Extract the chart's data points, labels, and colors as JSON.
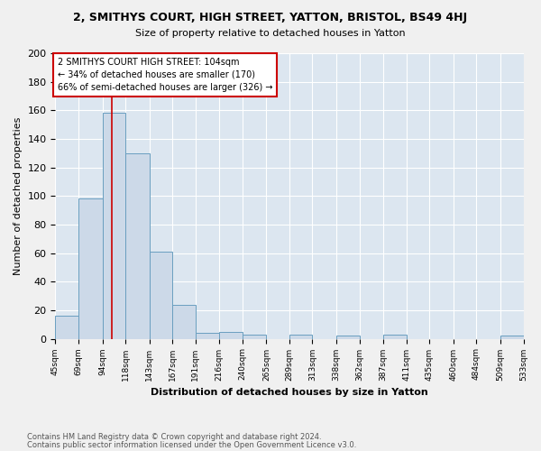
{
  "title": "2, SMITHYS COURT, HIGH STREET, YATTON, BRISTOL, BS49 4HJ",
  "subtitle": "Size of property relative to detached houses in Yatton",
  "xlabel": "Distribution of detached houses by size in Yatton",
  "ylabel": "Number of detached properties",
  "bar_edges": [
    45,
    69,
    94,
    118,
    143,
    167,
    191,
    216,
    240,
    265,
    289,
    313,
    338,
    362,
    387,
    411,
    435,
    460,
    484,
    509,
    533
  ],
  "bar_heights": [
    16,
    98,
    158,
    130,
    61,
    24,
    4,
    5,
    3,
    0,
    3,
    0,
    2,
    0,
    3,
    0,
    0,
    0,
    0,
    2
  ],
  "bar_color": "#ccd9e8",
  "bar_edge_color": "#6a9fc0",
  "background_color": "#dce6f0",
  "fig_background_color": "#f0f0f0",
  "grid_color": "#ffffff",
  "property_line_x": 104,
  "annotation_text": "2 SMITHYS COURT HIGH STREET: 104sqm\n← 34% of detached houses are smaller (170)\n66% of semi-detached houses are larger (326) →",
  "annotation_box_color": "#ffffff",
  "annotation_box_edge_color": "#cc0000",
  "red_line_color": "#cc0000",
  "footnote1": "Contains HM Land Registry data © Crown copyright and database right 2024.",
  "footnote2": "Contains public sector information licensed under the Open Government Licence v3.0.",
  "tick_labels": [
    "45sqm",
    "69sqm",
    "94sqm",
    "118sqm",
    "143sqm",
    "167sqm",
    "191sqm",
    "216sqm",
    "240sqm",
    "265sqm",
    "289sqm",
    "313sqm",
    "338sqm",
    "362sqm",
    "387sqm",
    "411sqm",
    "435sqm",
    "460sqm",
    "484sqm",
    "509sqm",
    "533sqm"
  ],
  "ylim": [
    0,
    200
  ],
  "yticks": [
    0,
    20,
    40,
    60,
    80,
    100,
    120,
    140,
    160,
    180,
    200
  ]
}
